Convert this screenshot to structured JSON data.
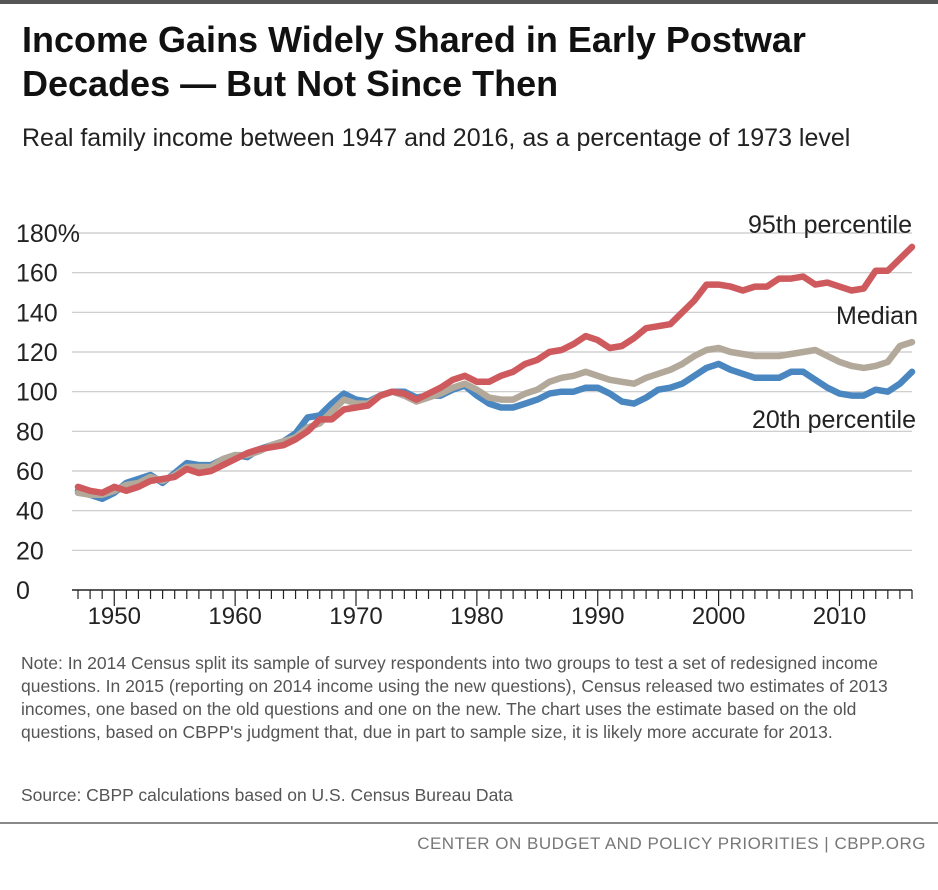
{
  "header": {
    "title": "Income Gains Widely Shared in Early Postwar Decades — But Not Since Then",
    "subtitle": "Real family income between 1947 and 2016, as a percentage of 1973 level"
  },
  "note": "Note: In 2014 Census split its sample of survey respondents into two groups to test a set of redesigned income questions.  In 2015 (reporting on 2014 income using the new questions), Census released two estimates of 2013 incomes, one based on the old questions and one on the new.  The chart uses the estimate based on the old questions, based on CBPP's judgment that, due in part to sample size, it is likely more accurate for 2013.",
  "source": "Source: CBPP calculations based on U.S. Census Bureau Data",
  "footer": "CENTER ON BUDGET AND POLICY PRIORITIES | CBPP.ORG",
  "chart_data": {
    "type": "line",
    "title": "Income Gains Widely Shared in Early Postwar Decades — But Not Since Then",
    "subtitle": "Real family income between 1947 and 2016, as a percentage of 1973 level",
    "xlim": [
      1947,
      2016
    ],
    "ylim": [
      0,
      180
    ],
    "y_ticks": [
      0,
      20,
      40,
      60,
      80,
      100,
      120,
      140,
      160,
      180
    ],
    "y_tick_labels": [
      "0",
      "20",
      "40",
      "60",
      "80",
      "100",
      "120",
      "140",
      "160",
      "180%"
    ],
    "x_ticks": [
      1950,
      1960,
      1970,
      1980,
      1990,
      2000,
      2010
    ],
    "x_tick_labels": [
      "1950",
      "1960",
      "1970",
      "1980",
      "1990",
      "2000",
      "2010"
    ],
    "grid": "horizontal",
    "x": [
      1947,
      1948,
      1949,
      1950,
      1951,
      1952,
      1953,
      1954,
      1955,
      1956,
      1957,
      1958,
      1959,
      1960,
      1961,
      1962,
      1963,
      1964,
      1965,
      1966,
      1967,
      1968,
      1969,
      1970,
      1971,
      1972,
      1973,
      1974,
      1975,
      1976,
      1977,
      1978,
      1979,
      1980,
      1981,
      1982,
      1983,
      1984,
      1985,
      1986,
      1987,
      1988,
      1989,
      1990,
      1991,
      1992,
      1993,
      1994,
      1995,
      1996,
      1997,
      1998,
      1999,
      2000,
      2001,
      2002,
      2003,
      2004,
      2005,
      2006,
      2007,
      2008,
      2009,
      2010,
      2011,
      2012,
      2013,
      2014,
      2015,
      2016
    ],
    "series": [
      {
        "name": "20th percentile",
        "color": "#4a87c0",
        "values": [
          50,
          48,
          46,
          49,
          54,
          56,
          58,
          54,
          59,
          64,
          63,
          63,
          66,
          68,
          67,
          71,
          73,
          75,
          79,
          87,
          88,
          94,
          99,
          96,
          95,
          98,
          100,
          100,
          97,
          98,
          98,
          101,
          103,
          98,
          94,
          92,
          92,
          94,
          96,
          99,
          100,
          100,
          102,
          102,
          99,
          95,
          94,
          97,
          101,
          102,
          104,
          108,
          112,
          114,
          111,
          109,
          107,
          107,
          107,
          110,
          110,
          106,
          102,
          99,
          98,
          98,
          101,
          100,
          104,
          110
        ],
        "label_year": 2014
      },
      {
        "name": "Median",
        "color": "#b3a99b",
        "values": [
          49,
          48,
          48,
          50,
          53,
          54,
          57,
          55,
          58,
          62,
          62,
          62,
          66,
          68,
          68,
          70,
          73,
          75,
          77,
          82,
          84,
          90,
          96,
          94,
          94,
          98,
          100,
          98,
          95,
          97,
          99,
          102,
          104,
          101,
          97,
          96,
          96,
          99,
          101,
          105,
          107,
          108,
          110,
          108,
          106,
          105,
          104,
          107,
          109,
          111,
          114,
          118,
          121,
          122,
          120,
          119,
          118,
          118,
          118,
          119,
          120,
          121,
          118,
          115,
          113,
          112,
          113,
          115,
          123,
          125
        ],
        "label_year": 2014
      },
      {
        "name": "95th percentile",
        "color": "#cf5a5e",
        "values": [
          52,
          50,
          49,
          52,
          50,
          52,
          55,
          56,
          57,
          61,
          59,
          60,
          63,
          66,
          69,
          71,
          72,
          73,
          76,
          80,
          86,
          86,
          91,
          92,
          93,
          98,
          100,
          99,
          96,
          99,
          102,
          106,
          108,
          105,
          105,
          108,
          110,
          114,
          116,
          120,
          121,
          124,
          128,
          126,
          122,
          123,
          127,
          132,
          133,
          134,
          140,
          146,
          154,
          154,
          153,
          151,
          153,
          153,
          157,
          157,
          158,
          154,
          155,
          153,
          151,
          152,
          161,
          161,
          167,
          173
        ],
        "label_year": 2014
      }
    ],
    "series_labels": [
      "95th percentile",
      "Median",
      "20th percentile"
    ]
  }
}
